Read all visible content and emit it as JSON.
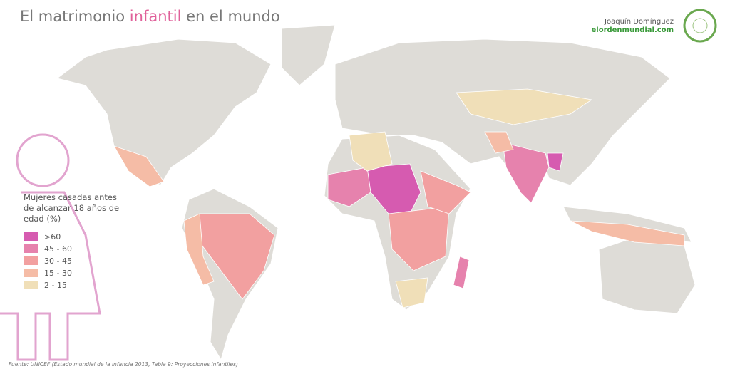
{
  "header": {
    "title": {
      "before": "El matrimonio",
      "highlight": "infantil",
      "after": "en el mundo"
    },
    "author": "Joaquín Domínguez",
    "site": "elordenmundial.com"
  },
  "legend": {
    "title": [
      "Mujeres casadas antes",
      "de alcanzar 18 años de",
      "edad (%)"
    ],
    "items": [
      {
        "label": ">60",
        "color": "#d65bb0"
      },
      {
        "label": "45 - 60",
        "color": "#e682ad"
      },
      {
        "label": "30 - 45",
        "color": "#f2a0a0"
      },
      {
        "label": "15 - 30",
        "color": "#f5bca6"
      },
      {
        "label": "2 - 15",
        "color": "#f0dfb8"
      }
    ]
  },
  "source": "Fuente: UNICEF  (Estado mundial de la infancia 2013, Tabla 9: Proyecciones infantiles)"
}
